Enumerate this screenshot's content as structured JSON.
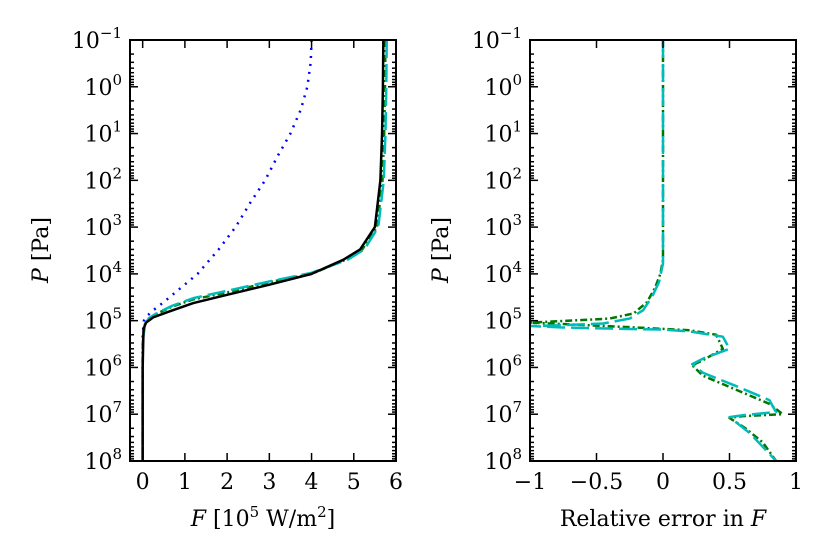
{
  "chart_data": [
    {
      "type": "line",
      "panel": "left",
      "xlabel": "F [10^5 W/m^2]",
      "xlabel_parts": {
        "var": "F",
        "pre": " [10",
        "exp": "5",
        "mid": " W/m",
        "exp2": "2",
        "post": "]"
      },
      "ylabel": "P [Pa]",
      "ylabel_parts": {
        "var": "P",
        "rest": " [Pa]"
      },
      "xlim": [
        -0.3,
        6
      ],
      "ylim": [
        100000000,
        0.1
      ],
      "yscale": "log",
      "xticks": [
        0,
        1,
        2,
        3,
        4,
        5,
        6
      ],
      "xtick_labels": [
        "0",
        "1",
        "2",
        "3",
        "4",
        "5",
        "6"
      ],
      "yticks_exp": [
        -1,
        0,
        1,
        2,
        3,
        4,
        5,
        6,
        7,
        8
      ],
      "ytick_base": "10",
      "grid": false,
      "series": [
        {
          "color": "#0000ff",
          "dash": "2,6",
          "points": [
            [
              4.0,
              0.1
            ],
            [
              3.98,
              0.3
            ],
            [
              3.9,
              1
            ],
            [
              3.75,
              3
            ],
            [
              3.5,
              10
            ],
            [
              3.2,
              30
            ],
            [
              2.9,
              100
            ],
            [
              2.55,
              300
            ],
            [
              2.2,
              1000
            ],
            [
              1.8,
              3000
            ],
            [
              1.3,
              10000
            ],
            [
              0.9,
              20000
            ],
            [
              0.5,
              40000
            ],
            [
              0.25,
              60000
            ],
            [
              0.1,
              80000
            ],
            [
              0.03,
              100000
            ],
            [
              0.0,
              200000
            ],
            [
              0.0,
              100000000
            ]
          ]
        },
        {
          "color": "#007700",
          "dash": "7,3,2,3",
          "points": [
            [
              5.75,
              0.1
            ],
            [
              5.74,
              1
            ],
            [
              5.72,
              10
            ],
            [
              5.68,
              100
            ],
            [
              5.55,
              1000
            ],
            [
              5.2,
              3000
            ],
            [
              4.8,
              5000
            ],
            [
              4.0,
              10000
            ],
            [
              3.0,
              15000
            ],
            [
              2.0,
              25000
            ],
            [
              1.2,
              35000
            ],
            [
              0.7,
              50000
            ],
            [
              0.35,
              70000
            ],
            [
              0.15,
              90000
            ],
            [
              0.05,
              120000
            ],
            [
              0.0,
              300000
            ],
            [
              0.0,
              100000000
            ]
          ]
        },
        {
          "color": "#00bbbb",
          "dash": "18,6",
          "points": [
            [
              5.78,
              0.1
            ],
            [
              5.77,
              1
            ],
            [
              5.75,
              10
            ],
            [
              5.71,
              100
            ],
            [
              5.58,
              1000
            ],
            [
              5.25,
              3000
            ],
            [
              4.85,
              5000
            ],
            [
              4.0,
              9500
            ],
            [
              3.0,
              14500
            ],
            [
              2.0,
              23000
            ],
            [
              1.2,
              33000
            ],
            [
              0.7,
              48000
            ],
            [
              0.35,
              68000
            ],
            [
              0.15,
              88000
            ],
            [
              0.05,
              120000
            ],
            [
              0.0,
              300000
            ],
            [
              0.0,
              100000000
            ]
          ]
        },
        {
          "color": "#000000",
          "dash": "",
          "points": [
            [
              5.7,
              0.1
            ],
            [
              5.69,
              1
            ],
            [
              5.67,
              10
            ],
            [
              5.63,
              100
            ],
            [
              5.5,
              1000
            ],
            [
              5.15,
              3000
            ],
            [
              4.75,
              5000
            ],
            [
              4.0,
              10000
            ],
            [
              3.0,
              17000
            ],
            [
              2.0,
              28000
            ],
            [
              1.2,
              42000
            ],
            [
              0.6,
              65000
            ],
            [
              0.25,
              85000
            ],
            [
              0.08,
              110000
            ],
            [
              0.02,
              150000
            ],
            [
              0.0,
              1000000
            ],
            [
              0.0,
              100000000
            ]
          ]
        }
      ]
    },
    {
      "type": "line",
      "panel": "right",
      "xlabel": "Relative error in F",
      "xlabel_parts": {
        "pre": "Relative error in ",
        "var": "F"
      },
      "ylabel": "P [Pa]",
      "ylabel_parts": {
        "var": "P",
        "rest": " [Pa]"
      },
      "xlim": [
        -1,
        1
      ],
      "ylim": [
        100000000,
        0.1
      ],
      "yscale": "log",
      "xticks": [
        -1,
        -0.5,
        0,
        0.5,
        1
      ],
      "xtick_labels": [
        "−1",
        "−0.5",
        "0",
        "0.5",
        "1"
      ],
      "yticks_exp": [
        -1,
        0,
        1,
        2,
        3,
        4,
        5,
        6,
        7,
        8
      ],
      "ytick_base": "10",
      "grid": false,
      "series": [
        {
          "color": "#007700",
          "dash": "7,3,2,3",
          "points": [
            [
              0.0,
              0.1
            ],
            [
              0.0,
              1000
            ],
            [
              0.0,
              5000
            ],
            [
              -0.02,
              10000
            ],
            [
              -0.06,
              20000
            ],
            [
              -0.12,
              40000
            ],
            [
              -0.22,
              70000
            ],
            [
              -0.4,
              90000
            ],
            [
              -0.7,
              100000
            ],
            [
              -1.0,
              110000
            ],
            [
              -0.7,
              120000
            ],
            [
              -0.2,
              140000
            ],
            [
              0.0,
              150000
            ],
            [
              0.2,
              160000
            ],
            [
              0.4,
              200000
            ],
            [
              0.45,
              400000
            ],
            [
              0.3,
              700000
            ],
            [
              0.22,
              900000
            ],
            [
              0.3,
              1500000
            ],
            [
              0.55,
              3000000
            ],
            [
              0.8,
              6000000
            ],
            [
              0.9,
              10000000
            ],
            [
              0.6,
              11000000
            ],
            [
              0.5,
              12000000
            ],
            [
              0.62,
              20000000
            ],
            [
              0.75,
              40000000
            ],
            [
              0.85,
              100000000
            ]
          ]
        },
        {
          "color": "#00bbbb",
          "dash": "18,6",
          "points": [
            [
              0.0,
              0.1
            ],
            [
              0.0,
              1000
            ],
            [
              0.0,
              6000
            ],
            [
              -0.03,
              15000
            ],
            [
              -0.08,
              30000
            ],
            [
              -0.15,
              60000
            ],
            [
              -0.25,
              90000
            ],
            [
              -0.45,
              115000
            ],
            [
              -0.75,
              125000
            ],
            [
              -1.0,
              130000
            ],
            [
              -0.75,
              140000
            ],
            [
              -0.3,
              150000
            ],
            [
              0.0,
              155000
            ],
            [
              0.2,
              170000
            ],
            [
              0.45,
              220000
            ],
            [
              0.5,
              400000
            ],
            [
              0.3,
              650000
            ],
            [
              0.22,
              850000
            ],
            [
              0.3,
              1300000
            ],
            [
              0.55,
              2500000
            ],
            [
              0.8,
              5000000
            ],
            [
              0.85,
              9000000
            ],
            [
              0.6,
              10500000
            ],
            [
              0.5,
              11500000
            ],
            [
              0.65,
              25000000
            ],
            [
              0.8,
              70000000
            ],
            [
              0.85,
              100000000
            ]
          ]
        }
      ]
    }
  ]
}
